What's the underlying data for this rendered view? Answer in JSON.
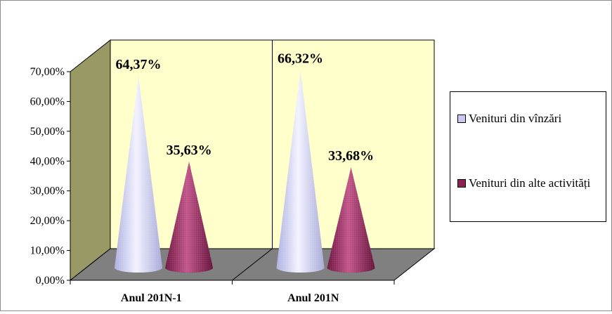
{
  "chart_data": {
    "type": "bar",
    "bar_shape": "cone-3d",
    "title": "",
    "categories": [
      "Anul 201N-1",
      "Anul 201N"
    ],
    "series": [
      {
        "name": "Venituri din vînzări",
        "values": [
          64.37,
          66.32
        ],
        "labels": [
          "64,37%",
          "66,32%"
        ],
        "color": "#c8c8f0"
      },
      {
        "name": "Venituri din alte activități",
        "values": [
          35.63,
          33.68
        ],
        "labels": [
          "35,63%",
          "33,68%"
        ],
        "color": "#8b2252"
      }
    ],
    "y_ticks": [
      "0,00%",
      "10,00%",
      "20,00%",
      "30,00%",
      "40,00%",
      "50,00%",
      "60,00%",
      "70,00%"
    ],
    "ylim": [
      0,
      70
    ],
    "grid": false,
    "legend_position": "right",
    "colors": {
      "back_wall": "#ffffcc",
      "side_wall": "#999966",
      "floor": "#808080",
      "axis": "#000000"
    }
  }
}
